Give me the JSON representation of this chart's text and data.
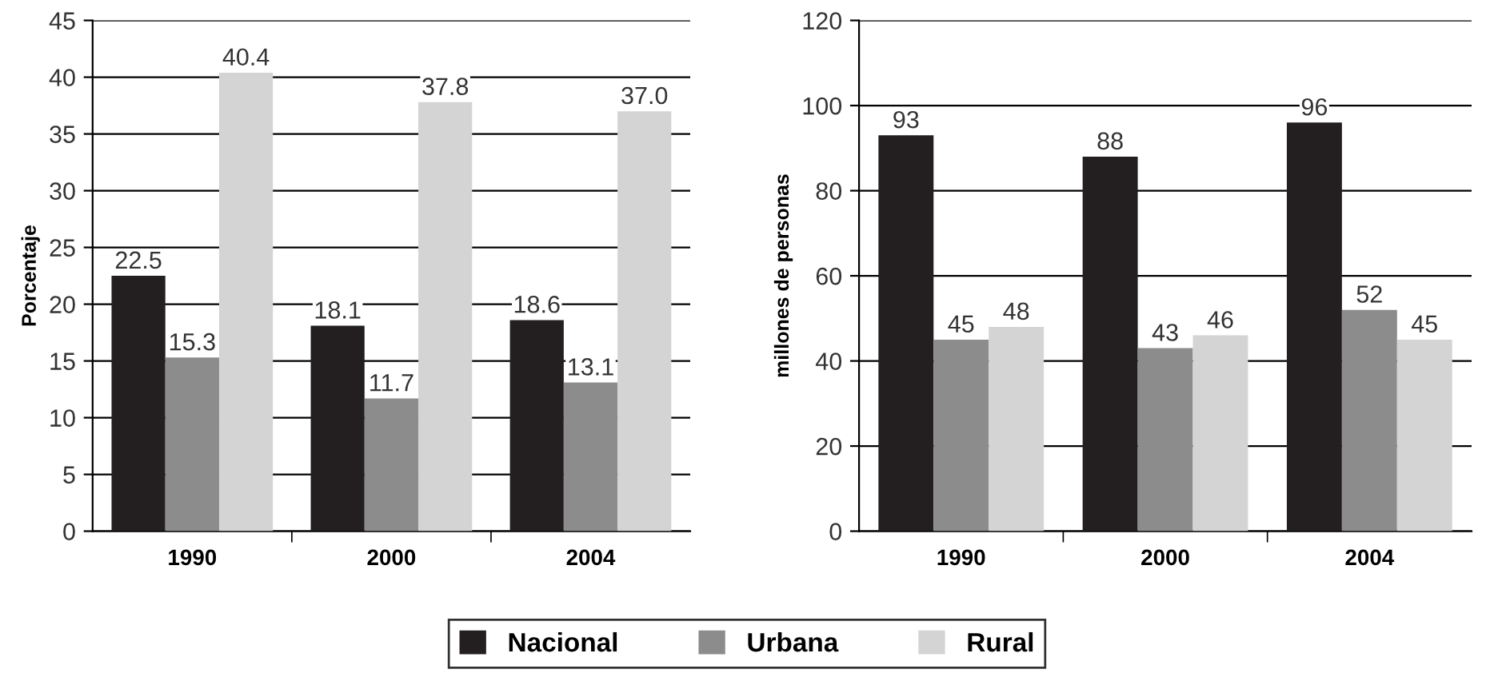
{
  "chart_data": [
    {
      "type": "bar",
      "ylabel": "Porcentaje",
      "categories": [
        "1990",
        "2000",
        "2004"
      ],
      "ylim": [
        0,
        45
      ],
      "yticks": [
        0,
        5,
        10,
        15,
        20,
        25,
        30,
        35,
        40,
        45
      ],
      "grid": "y",
      "series": [
        {
          "color": "#231f20",
          "values": [
            22.5,
            18.1,
            18.6
          ],
          "value_labels": [
            "22.5",
            "18.1",
            "18.6"
          ]
        },
        {
          "color": "#8c8c8c",
          "values": [
            15.3,
            11.7,
            13.1
          ],
          "value_labels": [
            "15.3",
            "11.7",
            "13.1"
          ]
        },
        {
          "color": "#d4d4d4",
          "values": [
            40.4,
            37.8,
            37.0
          ],
          "value_labels": [
            "40.4",
            "37.8",
            "37.0"
          ]
        }
      ]
    },
    {
      "type": "bar",
      "ylabel": "millones de personas",
      "categories": [
        "1990",
        "2000",
        "2004"
      ],
      "ylim": [
        0,
        120
      ],
      "yticks": [
        0,
        20,
        40,
        60,
        80,
        100,
        120
      ],
      "grid": "y",
      "legend": "bottom",
      "data_labels": true,
      "series": [
        {
          "name": "Nacional",
          "color": "#231f20",
          "values": [
            93,
            88,
            96
          ]
        },
        {
          "name": "Urbana",
          "color": "#8c8c8c",
          "values": [
            45,
            43,
            52
          ]
        },
        {
          "name": "Rural",
          "color": "#d4d4d4",
          "values": [
            48,
            46,
            45
          ]
        }
      ]
    }
  ]
}
